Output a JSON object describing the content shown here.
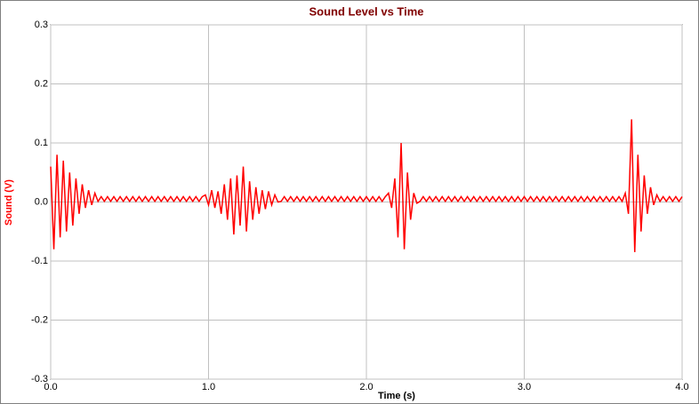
{
  "chart_data": {
    "type": "line",
    "title": "Sound Level vs Time",
    "x_label": "Time (s)",
    "y_label": "Sound (V)",
    "color": "#ff0000",
    "grid": true,
    "xlim": [
      0,
      4
    ],
    "ylim": [
      -0.3,
      0.3
    ],
    "xticks": [
      {
        "value": 0,
        "label": "0.0"
      },
      {
        "value": 1,
        "label": "1.0"
      },
      {
        "value": 2,
        "label": "2.0"
      },
      {
        "value": 3,
        "label": "3.0"
      },
      {
        "value": 4,
        "label": "4.0"
      }
    ],
    "yticks": [
      0.3,
      0.2,
      0.1,
      {
        "value": 0,
        "label": "0.0"
      },
      -0.1,
      -0.2,
      -0.3
    ],
    "x": [
      0,
      0.02,
      0.04,
      0.06,
      0.08,
      0.1,
      0.12,
      0.14,
      0.16,
      0.18,
      0.2,
      0.22,
      0.24,
      0.26,
      0.28,
      0.3,
      0.32,
      0.34,
      0.36,
      0.38,
      0.4,
      0.42,
      0.44,
      0.46,
      0.48,
      0.5,
      0.52,
      0.54,
      0.56,
      0.58,
      0.6,
      0.62,
      0.64,
      0.66,
      0.68,
      0.7,
      0.72,
      0.74,
      0.76,
      0.78,
      0.8,
      0.82,
      0.84,
      0.86,
      0.88,
      0.9,
      0.92,
      0.94,
      0.96,
      0.98,
      1,
      1.02,
      1.04,
      1.06,
      1.08,
      1.1,
      1.12,
      1.14,
      1.16,
      1.18,
      1.2,
      1.22,
      1.24,
      1.26,
      1.28,
      1.3,
      1.32,
      1.34,
      1.36,
      1.38,
      1.4,
      1.42,
      1.44,
      1.46,
      1.48,
      1.5,
      1.52,
      1.54,
      1.56,
      1.58,
      1.6,
      1.62,
      1.64,
      1.66,
      1.68,
      1.7,
      1.72,
      1.74,
      1.76,
      1.78,
      1.8,
      1.82,
      1.84,
      1.86,
      1.88,
      1.9,
      1.92,
      1.94,
      1.96,
      1.98,
      2,
      2.02,
      2.04,
      2.06,
      2.08,
      2.1,
      2.12,
      2.14,
      2.16,
      2.18,
      2.2,
      2.22,
      2.24,
      2.26,
      2.28,
      2.3,
      2.32,
      2.34,
      2.36,
      2.38,
      2.4,
      2.42,
      2.44,
      2.46,
      2.48,
      2.5,
      2.52,
      2.54,
      2.56,
      2.58,
      2.6,
      2.62,
      2.64,
      2.66,
      2.68,
      2.7,
      2.72,
      2.74,
      2.76,
      2.78,
      2.8,
      2.82,
      2.84,
      2.86,
      2.88,
      2.9,
      2.92,
      2.94,
      2.96,
      2.98,
      3,
      3.02,
      3.04,
      3.06,
      3.08,
      3.1,
      3.12,
      3.14,
      3.16,
      3.18,
      3.2,
      3.22,
      3.24,
      3.26,
      3.28,
      3.3,
      3.32,
      3.34,
      3.36,
      3.38,
      3.4,
      3.42,
      3.44,
      3.46,
      3.48,
      3.5,
      3.52,
      3.54,
      3.56,
      3.58,
      3.6,
      3.62,
      3.64,
      3.66,
      3.68,
      3.7,
      3.72,
      3.74,
      3.76,
      3.78,
      3.8,
      3.82,
      3.84,
      3.86,
      3.88,
      3.9,
      3.92,
      3.94,
      3.96,
      3.98,
      4
    ],
    "values": [
      0.06,
      -0.08,
      0.08,
      -0.06,
      0.07,
      -0.05,
      0.05,
      -0.04,
      0.04,
      -0.02,
      0.03,
      -0.01,
      0.02,
      -0.005,
      0.015,
      0.001,
      0.009,
      0.001,
      0.009,
      0.001,
      0.009,
      0.001,
      0.009,
      0.001,
      0.009,
      0.001,
      0.009,
      0.001,
      0.009,
      0.001,
      0.009,
      0.001,
      0.009,
      0.001,
      0.009,
      0.001,
      0.009,
      0.001,
      0.009,
      0.001,
      0.009,
      0.001,
      0.009,
      0.001,
      0.009,
      0.001,
      0.009,
      0.001,
      0.009,
      0.012,
      -0.005,
      0.02,
      -0.01,
      0.018,
      -0.02,
      0.03,
      -0.03,
      0.04,
      -0.055,
      0.045,
      -0.04,
      0.06,
      -0.05,
      0.035,
      -0.03,
      0.025,
      -0.02,
      0.02,
      -0.012,
      0.018,
      -0.005,
      0.012,
      0.0,
      0.001,
      0.009,
      0.001,
      0.009,
      0.001,
      0.009,
      0.001,
      0.009,
      0.001,
      0.009,
      0.001,
      0.009,
      0.001,
      0.009,
      0.001,
      0.009,
      0.001,
      0.009,
      0.001,
      0.009,
      0.001,
      0.009,
      0.001,
      0.009,
      0.001,
      0.009,
      0.001,
      0.009,
      0.001,
      0.009,
      0.001,
      0.009,
      0.001,
      0.009,
      0.015,
      -0.01,
      0.04,
      -0.06,
      0.1,
      -0.08,
      0.05,
      -0.03,
      0.015,
      -0.002,
      0.001,
      0.009,
      0.001,
      0.009,
      0.001,
      0.009,
      0.001,
      0.009,
      0.001,
      0.009,
      0.001,
      0.009,
      0.001,
      0.009,
      0.001,
      0.009,
      0.001,
      0.009,
      0.001,
      0.009,
      0.001,
      0.009,
      0.001,
      0.009,
      0.001,
      0.009,
      0.001,
      0.009,
      0.001,
      0.009,
      0.001,
      0.009,
      0.001,
      0.009,
      0.001,
      0.009,
      0.001,
      0.009,
      0.001,
      0.009,
      0.001,
      0.009,
      0.001,
      0.009,
      0.001,
      0.009,
      0.001,
      0.009,
      0.001,
      0.009,
      0.001,
      0.009,
      0.001,
      0.009,
      0.001,
      0.009,
      0.001,
      0.009,
      0.001,
      0.009,
      0.001,
      0.009,
      0.001,
      0.009,
      0.001,
      0.015,
      -0.02,
      0.14,
      -0.085,
      0.08,
      -0.05,
      0.045,
      -0.02,
      0.025,
      -0.005,
      0.012,
      0.001,
      0.009,
      0.001,
      0.009,
      0.001,
      0.009,
      0.001,
      0.009
    ]
  }
}
